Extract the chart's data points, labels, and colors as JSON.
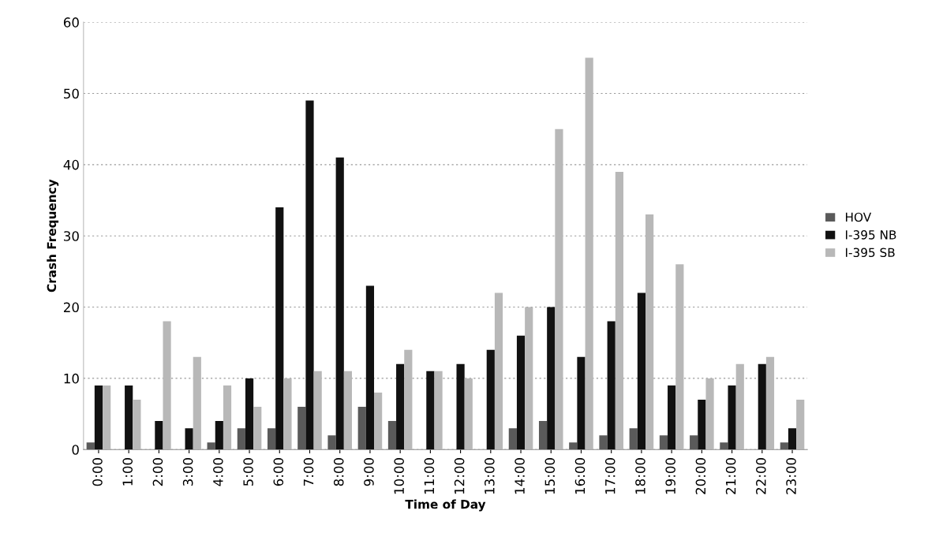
{
  "chart_data": {
    "type": "bar",
    "xlabel": "Time of Day",
    "ylabel": "Crash Frequency",
    "categories": [
      "0:00",
      "1:00",
      "2:00",
      "3:00",
      "4:00",
      "5:00",
      "6:00",
      "7:00",
      "8:00",
      "9:00",
      "10:00",
      "11:00",
      "12:00",
      "13:00",
      "14:00",
      "15:00",
      "16:00",
      "17:00",
      "18:00",
      "19:00",
      "20:00",
      "21:00",
      "22:00",
      "23:00"
    ],
    "series": [
      {
        "name": "HOV",
        "color": "#5a5a5a",
        "values": [
          1,
          0,
          0,
          0,
          1,
          3,
          3,
          6,
          2,
          6,
          4,
          0,
          0,
          0,
          3,
          4,
          1,
          2,
          3,
          2,
          2,
          1,
          0,
          1
        ]
      },
      {
        "name": "I-395 NB",
        "color": "#111111",
        "values": [
          9,
          9,
          4,
          3,
          4,
          10,
          34,
          49,
          41,
          23,
          12,
          11,
          12,
          14,
          16,
          20,
          13,
          18,
          22,
          9,
          7,
          9,
          12,
          3
        ]
      },
      {
        "name": "I-395 SB",
        "color": "#b8b8b8",
        "values": [
          9,
          7,
          18,
          13,
          9,
          6,
          10,
          11,
          11,
          8,
          14,
          11,
          10,
          22,
          20,
          45,
          55,
          39,
          33,
          26,
          10,
          12,
          13,
          7
        ]
      }
    ],
    "ylim": [
      0,
      60
    ],
    "yticks": [
      0,
      10,
      20,
      30,
      40,
      50,
      60
    ],
    "grid": "y",
    "legend": "right"
  }
}
